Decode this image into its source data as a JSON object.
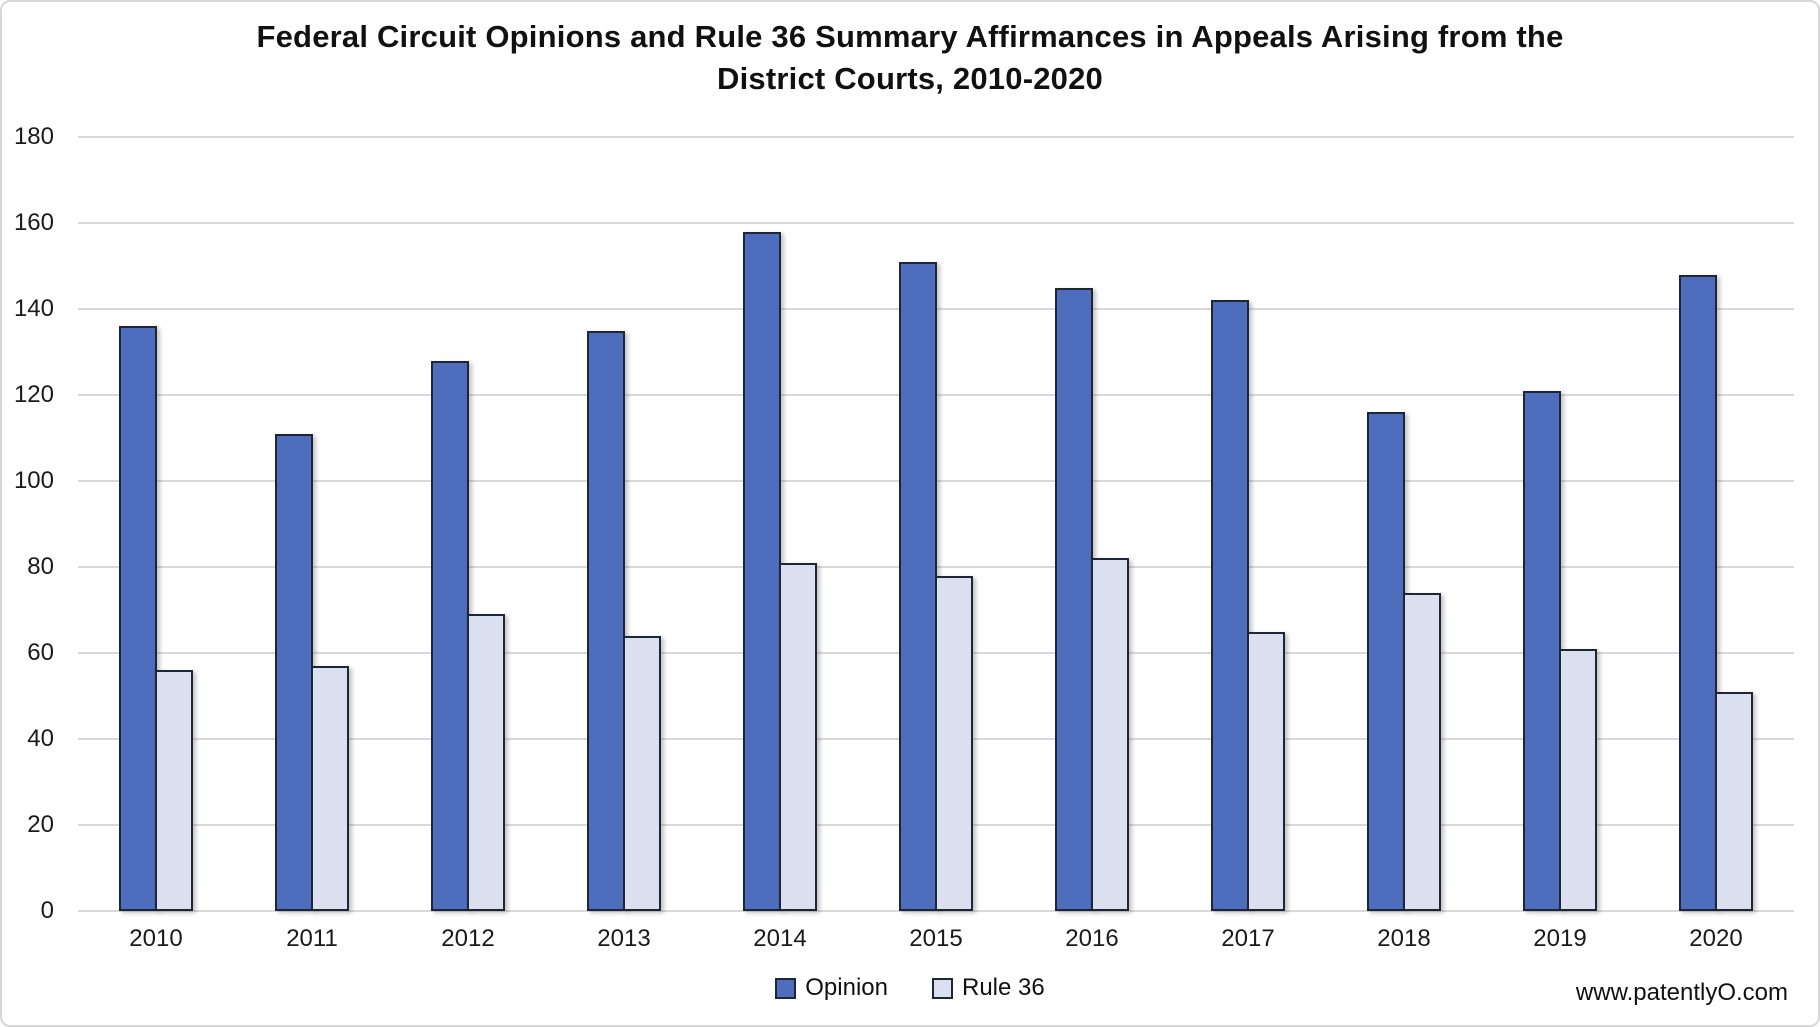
{
  "chart_data": {
    "type": "bar",
    "title": "Federal Circuit Opinions and Rule 36 Summary Affirmances in Appeals Arising from the\nDistrict Courts, 2010-2020",
    "categories": [
      "2010",
      "2011",
      "2012",
      "2013",
      "2014",
      "2015",
      "2016",
      "2017",
      "2018",
      "2019",
      "2020"
    ],
    "series": [
      {
        "name": "Opinion",
        "color": "#4f6dbd",
        "values": [
          136,
          111,
          128,
          135,
          158,
          151,
          145,
          142,
          116,
          121,
          148
        ]
      },
      {
        "name": "Rule 36",
        "color": "#dbe0f1",
        "values": [
          56,
          57,
          69,
          64,
          81,
          78,
          82,
          65,
          74,
          61,
          51
        ]
      }
    ],
    "ylim": [
      0,
      180
    ],
    "yticks": [
      0,
      20,
      40,
      60,
      80,
      100,
      120,
      140,
      160,
      180
    ],
    "grid": true,
    "legend_position": "bottom",
    "colors": {
      "bar_border": "#1e2636",
      "gridline": "#d9d9d9",
      "chart_border": "#d7d7d7",
      "text": "#1a1a1a"
    }
  },
  "watermark": "www.patentlyO.com"
}
